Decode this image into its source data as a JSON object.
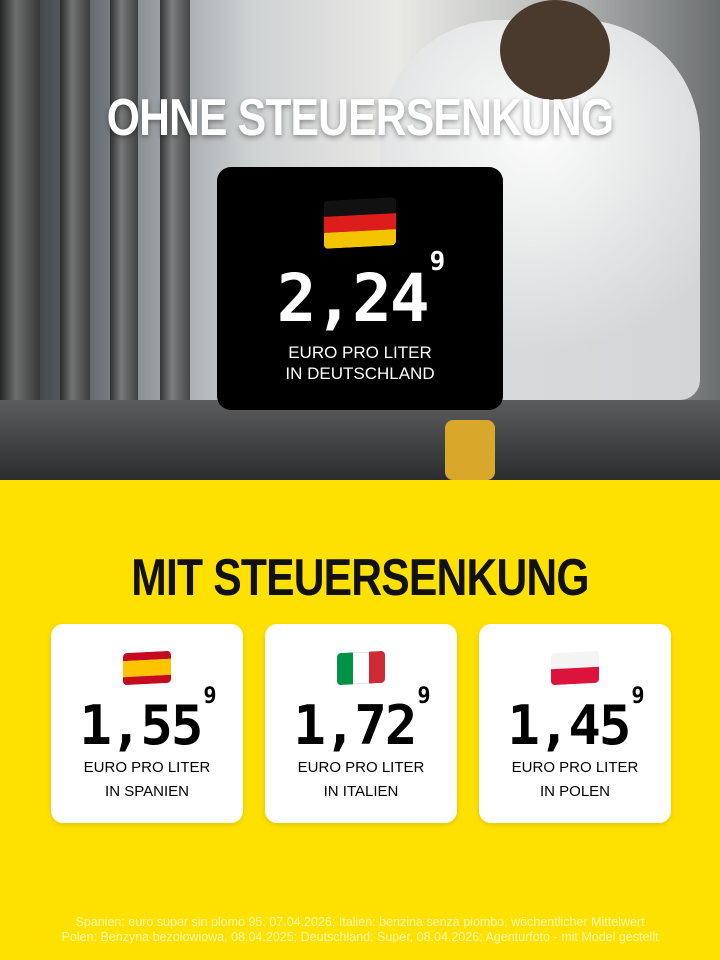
{
  "top": {
    "heading": "OHNE STEUERSENKUNG",
    "germany": {
      "flag": "flag-germany",
      "price": "2,24",
      "price_superscript": "9",
      "label_line1": "EURO PRO LITER",
      "label_line2": "IN DEUTSCHLAND"
    }
  },
  "bottom": {
    "heading": "MIT STEUERSENKUNG",
    "cards": [
      {
        "flag": "flag-spain",
        "price": "1,55",
        "price_superscript": "9",
        "label_line1": "EURO PRO LITER",
        "label_line2": "IN SPANIEN"
      },
      {
        "flag": "flag-italy",
        "price": "1,72",
        "price_superscript": "9",
        "label_line1": "EURO PRO LITER",
        "label_line2": "IN ITALIEN"
      },
      {
        "flag": "flag-poland",
        "price": "1,45",
        "price_superscript": "9",
        "label_line1": "EURO PRO LITER",
        "label_line2": "IN POLEN"
      }
    ]
  },
  "footer": {
    "line1": "Spanien: euro super sin plomo 95, 07.04.2026; Italien: benzina senza piombo, wöchentlicher Mittelwert",
    "line2": "Polen: Benzyna bezolowiowa, 08.04.2025; Deutschland: Super, 08.04.2026; Agenturfoto - mit Model gestellt"
  },
  "colors": {
    "background_yellow": "#FFE100",
    "card_black": "#000000",
    "card_white": "#FFFFFF"
  }
}
